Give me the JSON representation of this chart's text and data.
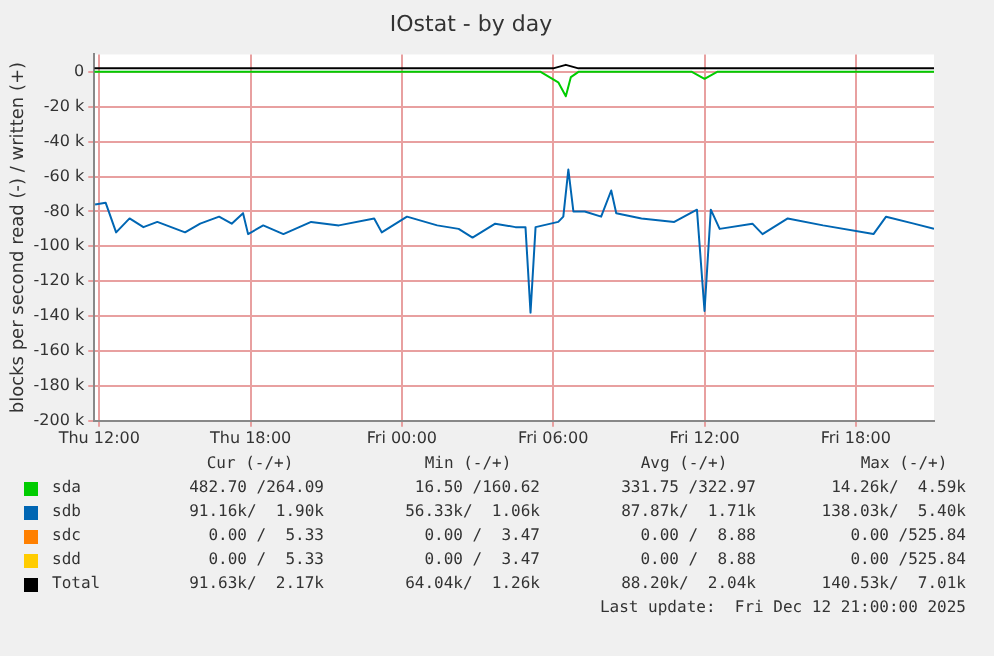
{
  "chart_data": {
    "type": "line",
    "title": "IOstat - by day",
    "ylabel": "blocks per second read (-) / written (+)",
    "xlim": [
      "2025-12-11T11:48",
      "2025-12-12T21:06"
    ],
    "xticks": [
      {
        "value": "2025-12-11T12:00",
        "label": "Thu 12:00"
      },
      {
        "value": "2025-12-11T18:00",
        "label": "Thu 18:00"
      },
      {
        "value": "2025-12-12T00:00",
        "label": "Fri 00:00"
      },
      {
        "value": "2025-12-12T06:00",
        "label": "Fri 06:00"
      },
      {
        "value": "2025-12-12T12:00",
        "label": "Fri 12:00"
      },
      {
        "value": "2025-12-12T18:00",
        "label": "Fri 18:00"
      }
    ],
    "ylim": [
      -200000,
      10000
    ],
    "yticks": [
      {
        "value": -200000,
        "label": "-200 k"
      },
      {
        "value": -180000,
        "label": "-180 k"
      },
      {
        "value": -160000,
        "label": "-160 k"
      },
      {
        "value": -140000,
        "label": "-140 k"
      },
      {
        "value": -120000,
        "label": "-120 k"
      },
      {
        "value": -100000,
        "label": "-100 k"
      },
      {
        "value": -80000,
        "label": "-80 k"
      },
      {
        "value": -60000,
        "label": "-60 k"
      },
      {
        "value": -40000,
        "label": "-40 k"
      },
      {
        "value": -20000,
        "label": "-20 k"
      },
      0
    ],
    "grid": true,
    "legend": "bottom",
    "marker": "none",
    "line_style": "solid",
    "series": [
      {
        "name": "sda",
        "color": "#00cc00",
        "x": [
          "2025-12-11T11:48",
          "2025-12-11T16:00",
          "2025-12-11T20:00",
          "2025-12-12T00:00",
          "2025-12-12T04:00",
          "2025-12-12T05:30",
          "2025-12-12T06:12",
          "2025-12-12T06:30",
          "2025-12-12T06:42",
          "2025-12-12T07:00",
          "2025-12-12T11:30",
          "2025-12-12T12:00",
          "2025-12-12T12:30",
          "2025-12-12T16:00",
          "2025-12-12T21:06"
        ],
        "values": [
          0,
          0,
          0,
          0,
          0,
          0,
          -6000,
          -14000,
          -3000,
          0,
          0,
          -4000,
          0,
          0,
          0
        ]
      },
      {
        "name": "sdb",
        "color": "#0066b3",
        "x": [
          "2025-12-11T11:50",
          "2025-12-11T12:15",
          "2025-12-11T12:40",
          "2025-12-11T13:12",
          "2025-12-11T13:45",
          "2025-12-11T14:18",
          "2025-12-11T15:24",
          "2025-12-11T16:00",
          "2025-12-11T16:45",
          "2025-12-11T17:15",
          "2025-12-11T17:42",
          "2025-12-11T17:54",
          "2025-12-11T18:30",
          "2025-12-11T19:18",
          "2025-12-11T20:24",
          "2025-12-11T21:30",
          "2025-12-11T22:54",
          "2025-12-11T23:12",
          "2025-12-12T00:12",
          "2025-12-12T01:24",
          "2025-12-12T02:15",
          "2025-12-12T02:48",
          "2025-12-12T03:42",
          "2025-12-12T04:30",
          "2025-12-12T04:54",
          "2025-12-12T05:06",
          "2025-12-12T05:18",
          "2025-12-12T06:12",
          "2025-12-12T06:24",
          "2025-12-12T06:36",
          "2025-12-12T06:48",
          "2025-12-12T07:15",
          "2025-12-12T07:54",
          "2025-12-12T08:18",
          "2025-12-12T08:30",
          "2025-12-12T09:30",
          "2025-12-12T10:48",
          "2025-12-12T11:42",
          "2025-12-12T12:00",
          "2025-12-12T12:15",
          "2025-12-12T12:36",
          "2025-12-12T13:54",
          "2025-12-12T14:18",
          "2025-12-12T15:18",
          "2025-12-12T16:42",
          "2025-12-12T18:42",
          "2025-12-12T19:12",
          "2025-12-12T20:18",
          "2025-12-12T21:06"
        ],
        "values": [
          -76000,
          -75000,
          -92000,
          -84000,
          -89000,
          -86000,
          -92000,
          -87000,
          -83000,
          -87000,
          -81000,
          -93000,
          -88000,
          -93000,
          -86000,
          -88000,
          -84000,
          -92000,
          -83000,
          -88000,
          -90000,
          -95000,
          -87000,
          -89000,
          -89000,
          -138000,
          -89000,
          -86000,
          -83000,
          -56000,
          -80000,
          -80000,
          -83000,
          -68000,
          -81000,
          -84000,
          -86000,
          -79000,
          -137000,
          -79000,
          -90000,
          -87000,
          -93000,
          -84000,
          -88000,
          -93000,
          -83000,
          -87000,
          -90000
        ]
      },
      {
        "name": "sdc",
        "color": "#ff8000"
      },
      {
        "name": "sdd",
        "color": "#ffcc00"
      },
      {
        "name": "Total",
        "color": "#000000",
        "x": [
          "2025-12-11T11:48",
          "2025-12-11T18:00",
          "2025-12-12T02:00",
          "2025-12-12T06:00",
          "2025-12-12T06:30",
          "2025-12-12T07:00",
          "2025-12-12T14:00",
          "2025-12-12T21:06"
        ],
        "values": [
          2000,
          2000,
          2000,
          2000,
          4000,
          2000,
          2000,
          2000
        ]
      }
    ],
    "annotations": [
      "Cur (-/+)",
      "Min (-/+)",
      "Avg (-/+)",
      "Max (-/+)",
      "482.70 /264.09",
      "16.50 /160.62",
      "331.75 /322.97",
      "14.26k/  4.59k",
      "91.16k/  1.90k",
      "56.33k/  1.06k",
      "87.87k/  1.71k",
      "138.03k/  5.40k",
      "0.00 /  5.33",
      "0.00 /  3.47",
      "0.00 /  8.88",
      "0.00 /525.84",
      "0.00 /  5.33",
      "0.00 /  3.47",
      "0.00 /  8.88",
      "0.00 /525.84",
      "91.63k/  2.17k",
      "64.04k/  1.26k",
      "88.20k/  2.04k",
      "140.53k/  7.01k",
      "Last update:  Fri Dec 12 21:00:00 2025"
    ]
  }
}
